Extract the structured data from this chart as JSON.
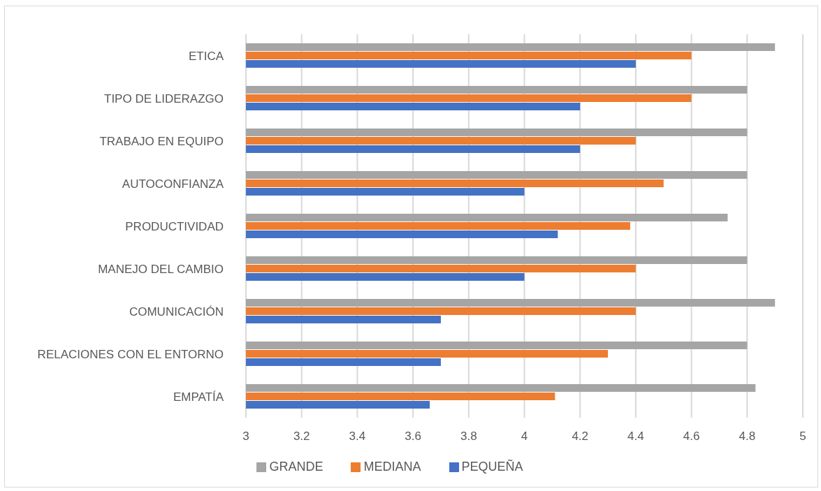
{
  "chart_data": {
    "type": "bar",
    "orientation": "horizontal",
    "categories": [
      "ETICA",
      "TIPO DE LIDERAZGO",
      "TRABAJO EN EQUIPO",
      "AUTOCONFIANZA",
      "PRODUCTIVIDAD",
      "MANEJO DEL CAMBIO",
      "COMUNICACIÓN",
      "RELACIONES CON EL ENTORNO",
      "EMPATÍA"
    ],
    "series": [
      {
        "name": "GRANDE",
        "color": "#a5a5a5",
        "values": [
          4.9,
          4.8,
          4.8,
          4.8,
          4.73,
          4.8,
          4.9,
          4.8,
          4.83
        ]
      },
      {
        "name": "MEDIANA",
        "color": "#ed7d31",
        "values": [
          4.6,
          4.6,
          4.4,
          4.5,
          4.38,
          4.4,
          4.4,
          4.3,
          4.11
        ]
      },
      {
        "name": "PEQUEÑA",
        "color": "#4472c4",
        "values": [
          4.4,
          4.2,
          4.2,
          4.0,
          4.12,
          4.0,
          3.7,
          3.7,
          3.66
        ]
      }
    ],
    "xlim": [
      3,
      5
    ],
    "xticks": [
      3,
      3.2,
      3.4,
      3.6,
      3.8,
      4,
      4.2,
      4.4,
      4.6,
      4.8,
      5
    ],
    "grid": "x",
    "legend": "bottom"
  }
}
